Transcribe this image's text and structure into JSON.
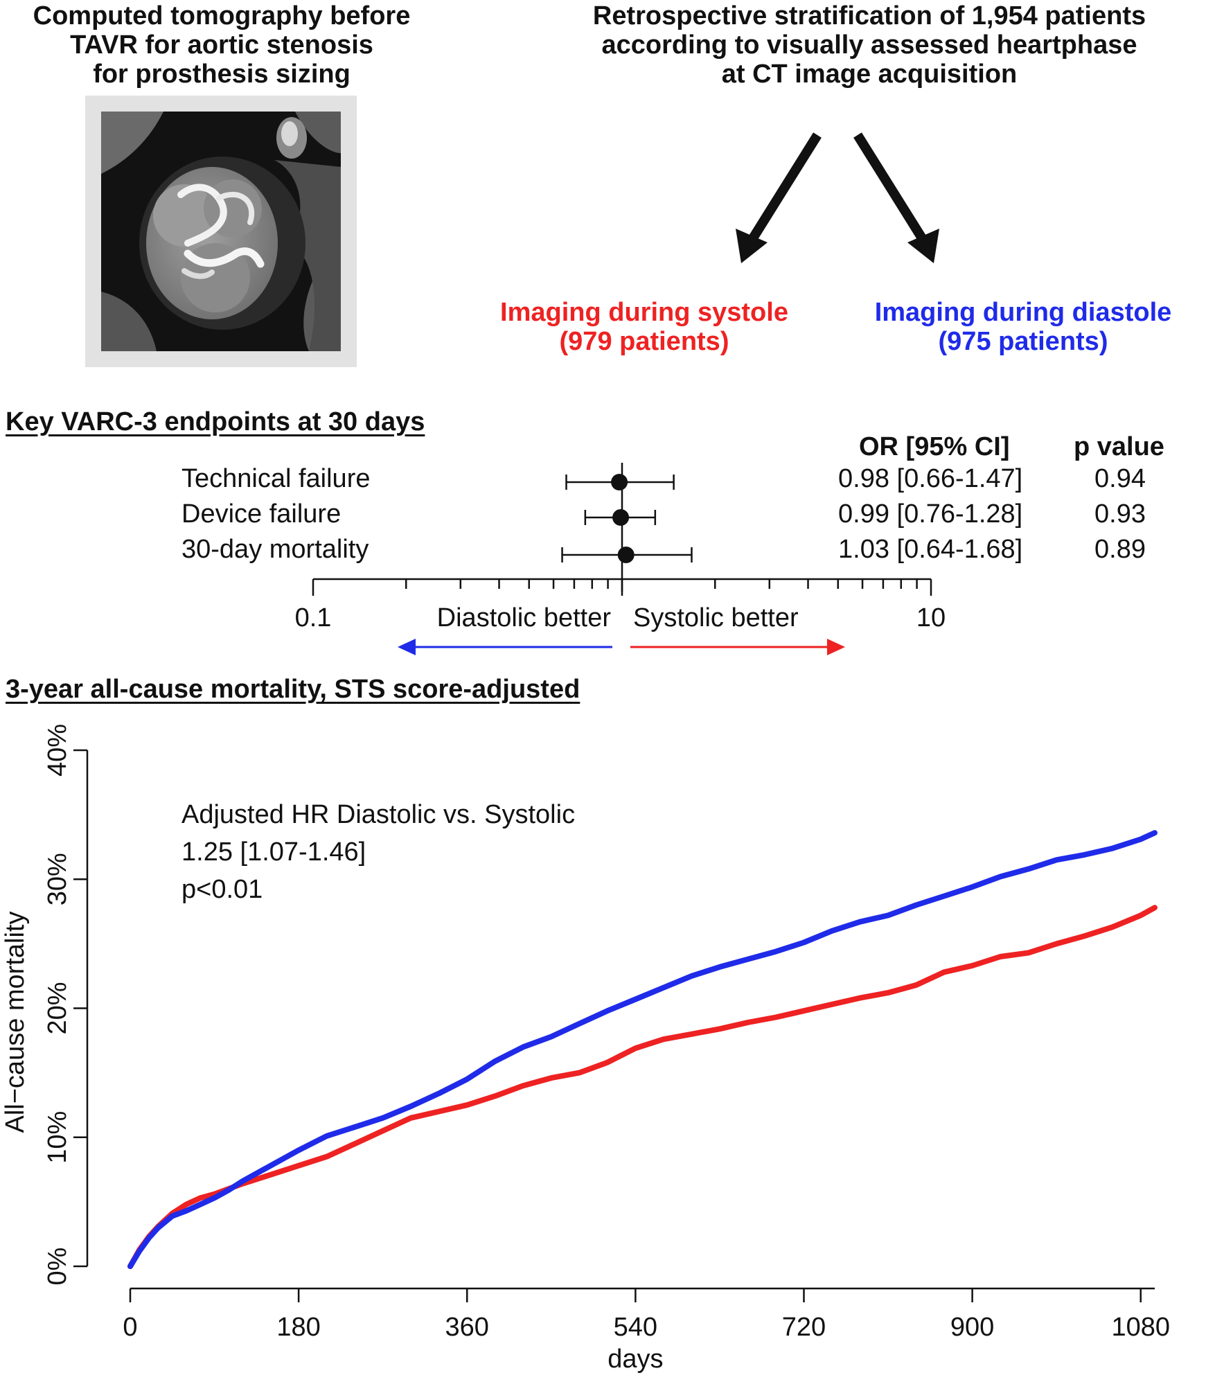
{
  "header": {
    "left_title": [
      "Computed tomography before",
      "TAVR for aortic stenosis",
      "for prosthesis sizing"
    ],
    "right_title": [
      "Retrospective stratification of 1,954 patients",
      "according to visually assessed heartphase",
      "at CT image acquisition"
    ],
    "systole_label": [
      "Imaging during systole",
      "(979 patients)"
    ],
    "diastole_label": [
      "Imaging during diastole",
      "(975 patients)"
    ],
    "ct_image_icon": "ct-scan-image"
  },
  "colors": {
    "systole": "#ee2222",
    "diastole": "#1f2be8",
    "image_frame": "#e0e0e0"
  },
  "forest": {
    "title": "Key VARC-3 endpoints at 30 days",
    "col_or": "OR [95% CI]",
    "col_p": "p value",
    "rows": [
      {
        "label": "Technical failure",
        "or": 0.98,
        "lo": 0.66,
        "hi": 1.47,
        "or_text": "0.98 [0.66-1.47]",
        "p": "0.94"
      },
      {
        "label": "Device failure",
        "or": 0.99,
        "lo": 0.76,
        "hi": 1.28,
        "or_text": "0.99 [0.76-1.28]",
        "p": "0.93"
      },
      {
        "label": "30-day mortality",
        "or": 1.03,
        "lo": 0.64,
        "hi": 1.68,
        "or_text": "1.03 [0.64-1.68]",
        "p": "0.89"
      }
    ],
    "axis_min": 0.1,
    "axis_max": 10,
    "tick_labels": [
      "0.1",
      "10"
    ],
    "scale": "log",
    "left_arrow": "Diastolic better",
    "right_arrow": "Systolic better"
  },
  "km": {
    "title": "3-year all-cause mortality, STS score-adjusted",
    "annotation": [
      "Adjusted HR Diastolic vs. Systolic",
      "1.25 [1.07-1.46]",
      "p<0.01"
    ]
  },
  "chart_data": [
    {
      "type": "forest",
      "categories": [
        "Technical failure",
        "Device failure",
        "30-day mortality"
      ],
      "values": [
        0.98,
        0.99,
        1.03
      ],
      "ci_low": [
        0.66,
        0.76,
        0.64
      ],
      "ci_high": [
        1.47,
        1.28,
        1.68
      ],
      "p_values": [
        0.94,
        0.93,
        0.89
      ],
      "xscale": "log",
      "xlim": [
        0.1,
        10
      ],
      "reference_line": 1
    },
    {
      "type": "line",
      "xlabel": "days",
      "ylabel": "All−cause mortality",
      "xlim": [
        0,
        1095
      ],
      "ylim": [
        0,
        40
      ],
      "xticks": [
        0,
        180,
        360,
        540,
        720,
        900,
        1080
      ],
      "yticks": [
        0,
        10,
        20,
        30,
        40
      ],
      "ytick_labels": [
        "0%",
        "10%",
        "20%",
        "30%",
        "40%"
      ],
      "series": [
        {
          "key": "systole",
          "x": [
            0,
            10,
            20,
            30,
            45,
            60,
            75,
            90,
            105,
            120,
            150,
            180,
            210,
            240,
            270,
            300,
            330,
            360,
            390,
            420,
            450,
            480,
            510,
            540,
            570,
            600,
            630,
            660,
            690,
            720,
            750,
            780,
            810,
            840,
            870,
            900,
            930,
            960,
            990,
            1020,
            1050,
            1080,
            1095
          ],
          "values": [
            0,
            1.3,
            2.3,
            3.1,
            4.1,
            4.8,
            5.3,
            5.6,
            6.0,
            6.4,
            7.1,
            7.8,
            8.5,
            9.5,
            10.5,
            11.5,
            12.0,
            12.5,
            13.2,
            14.0,
            14.6,
            15.0,
            15.8,
            16.9,
            17.6,
            18.0,
            18.4,
            18.9,
            19.3,
            19.8,
            20.3,
            20.8,
            21.2,
            21.8,
            22.8,
            23.3,
            24.0,
            24.3,
            25.0,
            25.6,
            26.3,
            27.2,
            27.8
          ]
        },
        {
          "key": "diastole",
          "x": [
            0,
            10,
            20,
            30,
            45,
            60,
            75,
            90,
            105,
            120,
            150,
            180,
            210,
            240,
            270,
            300,
            330,
            360,
            390,
            420,
            450,
            480,
            510,
            540,
            570,
            600,
            630,
            660,
            690,
            720,
            750,
            780,
            810,
            840,
            870,
            900,
            930,
            960,
            990,
            1020,
            1050,
            1080,
            1095
          ],
          "values": [
            0,
            1.2,
            2.2,
            3.0,
            3.9,
            4.3,
            4.8,
            5.3,
            5.9,
            6.6,
            7.8,
            9.0,
            10.1,
            10.8,
            11.5,
            12.4,
            13.4,
            14.5,
            15.9,
            17.0,
            17.8,
            18.8,
            19.8,
            20.7,
            21.6,
            22.5,
            23.2,
            23.8,
            24.4,
            25.1,
            26.0,
            26.7,
            27.2,
            28.0,
            28.7,
            29.4,
            30.2,
            30.8,
            31.5,
            31.9,
            32.4,
            33.1,
            33.6
          ]
        }
      ]
    }
  ]
}
